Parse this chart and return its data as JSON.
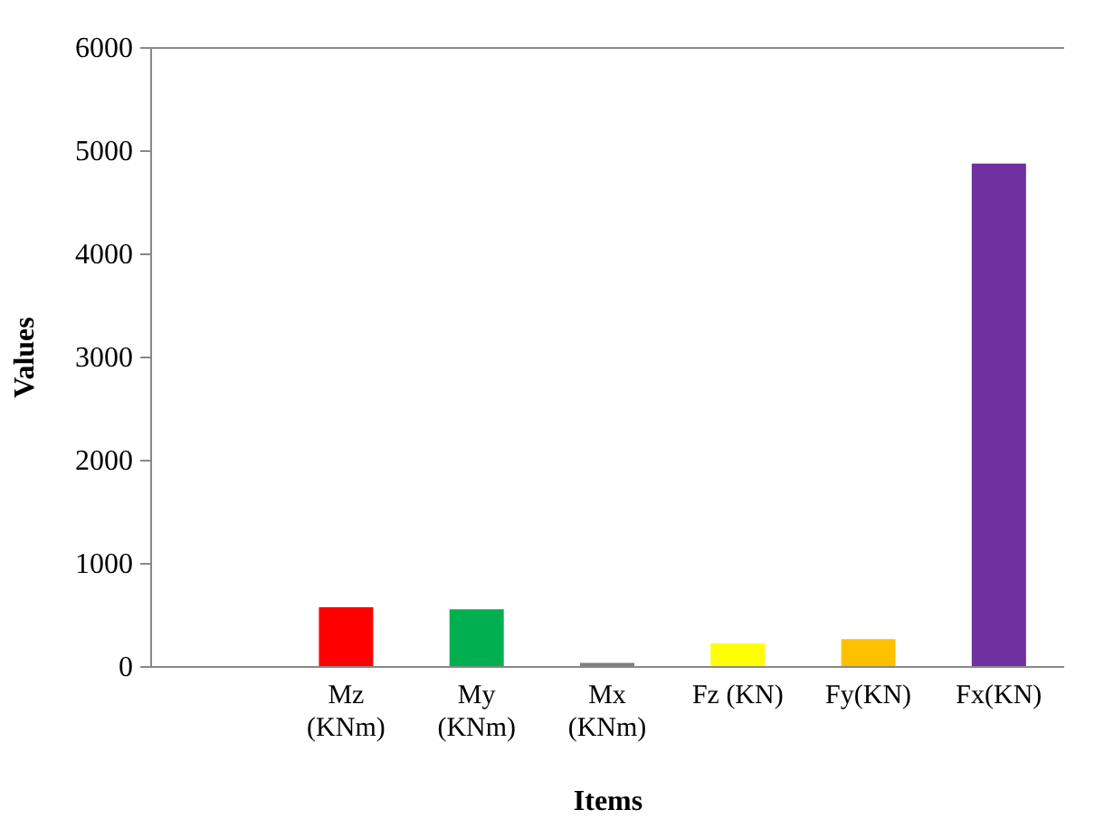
{
  "chart_data": {
    "type": "bar",
    "xlabel": "Items",
    "ylabel": "Values",
    "categories": [
      null,
      "Mz (KNm)",
      "My (KNm)",
      "Mx (KNm)",
      "Fz (KN)",
      "Fy(KN)",
      "Fx(KN)"
    ],
    "values": [
      null,
      570,
      550,
      30,
      220,
      260,
      4870
    ],
    "colors": [
      "#ffffff",
      "#ff0000",
      "#00b050",
      "#7f7f7f",
      "#ffff00",
      "#ffc000",
      "#7030a0"
    ],
    "ylim": [
      0,
      6000
    ],
    "yticks": [
      0,
      1000,
      2000,
      3000,
      4000,
      5000,
      6000
    ],
    "grid": false,
    "legend": false
  }
}
